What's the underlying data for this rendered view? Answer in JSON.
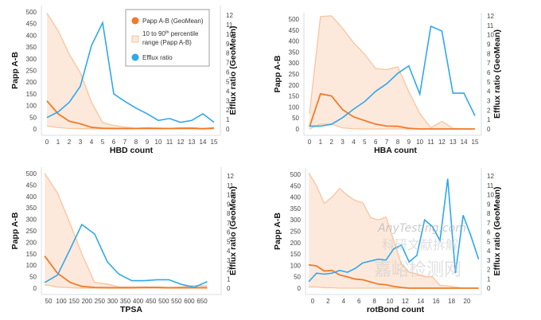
{
  "colors": {
    "geomean": "#f07b2a",
    "range_line": "#f9c49d",
    "range_fill": "#fde9dc",
    "efflux": "#2fa8ee",
    "axis": "#d8dde6"
  },
  "legend": {
    "geomean": "Papp A-B (GeoMean)",
    "range_line1_pre": "10 to 90",
    "range_sup": "th",
    "range_line1_post": " percentile",
    "range_line2": "range (Papp A-B)",
    "efflux": "Efflux ratio"
  },
  "watermark": {
    "line1": "嘉峪检测网",
    "line2": "科研文献拆解",
    "line3": "AnyTesting.com"
  },
  "chart_data": [
    {
      "type": "line",
      "xlabel": "HBD count",
      "ylabel": "Papp A-B",
      "y2label": "Efflux ratio (GeoMean)",
      "xticks": [
        0,
        1,
        2,
        3,
        4,
        5,
        6,
        7,
        8,
        9,
        10,
        11,
        12,
        13,
        14,
        15
      ],
      "yticks": [
        0,
        50,
        100,
        150,
        200,
        250,
        300,
        350,
        400,
        450,
        500
      ],
      "y2ticks": [
        0,
        1,
        2,
        3,
        4,
        5,
        6,
        7,
        8,
        9,
        10,
        11,
        12
      ],
      "ylim": [
        0,
        500
      ],
      "y2lim": [
        0,
        12
      ],
      "x": [
        0,
        1,
        2,
        3,
        4,
        5,
        6,
        7,
        8,
        9,
        10,
        11,
        12,
        13,
        14,
        15
      ],
      "series": [
        {
          "name": "Papp A-B (GeoMean)",
          "values": [
            120,
            65,
            33,
            22,
            7,
            3,
            2,
            2,
            2,
            3,
            2,
            2,
            3,
            3,
            1,
            4
          ]
        },
        {
          "name": "10 to 90th percentile range (Papp A-B)",
          "low": [
            13,
            6,
            2,
            1,
            1,
            0,
            0,
            0,
            0,
            0,
            0,
            0,
            0,
            0,
            0,
            0
          ],
          "high": [
            495,
            420,
            320,
            240,
            115,
            27,
            15,
            8,
            3,
            5,
            4,
            2,
            5,
            6,
            2,
            3
          ]
        },
        {
          "name": "Efflux ratio",
          "axis": "right",
          "values": [
            1.2,
            1.8,
            2.8,
            4.5,
            8.8,
            11.2,
            3.7,
            2.9,
            2.2,
            1.6,
            0.9,
            1.1,
            0.7,
            0.9,
            1.6,
            0.7
          ]
        }
      ],
      "legend": "top-right"
    },
    {
      "type": "line",
      "xlabel": "HBA count",
      "ylabel": "Papp A-B",
      "y2label": "Efflux ratio (GeoMean)",
      "xticks": [
        0,
        1,
        2,
        3,
        4,
        5,
        6,
        7,
        8,
        9,
        10,
        11,
        12,
        13,
        14,
        15
      ],
      "yticks": [
        0,
        50,
        100,
        150,
        200,
        250,
        300,
        350,
        400,
        450,
        500
      ],
      "y2ticks": [
        0,
        1,
        2,
        3,
        4,
        5,
        6,
        7,
        8,
        9,
        10,
        11,
        12
      ],
      "ylim": [
        0,
        500
      ],
      "y2lim": [
        0,
        12
      ],
      "x": [
        0,
        1,
        2,
        3,
        4,
        5,
        6,
        7,
        8,
        9,
        10,
        11,
        12,
        13,
        14,
        15
      ],
      "series": [
        {
          "name": "Papp A-B (GeoMean)",
          "values": [
            10,
            160,
            150,
            88,
            55,
            38,
            22,
            13,
            12,
            3,
            0,
            0,
            0,
            0,
            0,
            0
          ]
        },
        {
          "name": "10 to 90th percentile range (Papp A-B)",
          "low": [
            0,
            22,
            22,
            5,
            1,
            0,
            0,
            0,
            0,
            0,
            0,
            0,
            0,
            0,
            0,
            0
          ],
          "high": [
            70,
            512,
            515,
            458,
            392,
            340,
            275,
            270,
            283,
            170,
            70,
            5,
            35,
            3,
            0,
            0
          ]
        },
        {
          "name": "Efflux ratio",
          "axis": "right",
          "values": [
            0.3,
            0.3,
            0.5,
            1.2,
            2.1,
            2.9,
            4.0,
            4.8,
            5.9,
            6.7,
            3.7,
            10.9,
            10.4,
            3.8,
            3.8,
            1.4
          ]
        }
      ]
    },
    {
      "type": "line",
      "xlabel": "TPSA",
      "ylabel": "Papp A-B",
      "y2label": "Efflux ratio (GeoMean)",
      "xticks": [
        50,
        100,
        150,
        200,
        250,
        300,
        350,
        400,
        450,
        500,
        550,
        600,
        650
      ],
      "yticks": [
        0,
        50,
        100,
        150,
        200,
        250,
        300,
        350,
        400,
        450,
        500
      ],
      "y2ticks": [
        0,
        1,
        2,
        3,
        4,
        5,
        6,
        7,
        8,
        9,
        10,
        11,
        12
      ],
      "ylim": [
        0,
        500
      ],
      "y2lim": [
        0,
        12
      ],
      "x": [
        35,
        85,
        135,
        180,
        230,
        280,
        325,
        375,
        425,
        475,
        520,
        570,
        620,
        670
      ],
      "series": [
        {
          "name": "Papp A-B (GeoMean)",
          "values": [
            140,
            65,
            25,
            8,
            3,
            2,
            2,
            2,
            3,
            3,
            2,
            2,
            2,
            2
          ]
        },
        {
          "name": "10 to 90th percentile range (Papp A-B)",
          "low": [
            15,
            5,
            2,
            0,
            0,
            0,
            0,
            0,
            0,
            0,
            0,
            0,
            0,
            0
          ],
          "high": [
            500,
            415,
            280,
            150,
            25,
            18,
            5,
            5,
            5,
            5,
            3,
            5,
            12,
            10
          ]
        },
        {
          "name": "Efflux ratio",
          "axis": "right",
          "values": [
            0.6,
            1.4,
            4.2,
            6.8,
            5.8,
            2.8,
            1.5,
            0.8,
            0.8,
            0.9,
            0.9,
            0.4,
            0.1,
            0.7
          ]
        }
      ]
    },
    {
      "type": "line",
      "xlabel": "rotBond count",
      "ylabel": "Papp A-B",
      "y2label": "Efflux ratio (GeoMean)",
      "xticks": [
        0,
        2,
        4,
        6,
        8,
        10,
        12,
        14,
        16,
        18,
        20
      ],
      "yticks": [
        0,
        50,
        100,
        150,
        200,
        250,
        300,
        350,
        400,
        450,
        500
      ],
      "y2ticks": [
        0,
        1,
        2,
        3,
        4,
        5,
        6,
        7,
        8,
        9,
        10,
        11,
        12
      ],
      "ylim": [
        0,
        500
      ],
      "y2lim": [
        0,
        12
      ],
      "x": [
        -0.5,
        0.5,
        1.5,
        2.5,
        3.5,
        4.5,
        5.5,
        6.5,
        7.5,
        8.5,
        9.5,
        10.5,
        11.5,
        12.5,
        13.5,
        14.5,
        15.5,
        16.5,
        17.5,
        18.5,
        19.5,
        20.5,
        21.5
      ],
      "series": [
        {
          "name": "Papp A-B (GeoMean)",
          "values": [
            102,
            98,
            75,
            78,
            58,
            50,
            40,
            37,
            27,
            18,
            15,
            8,
            3,
            0,
            0,
            0,
            0,
            0,
            0,
            0,
            0,
            0,
            0
          ]
        },
        {
          "name": "10 to 90th percentile range (Papp A-B)",
          "low": [
            5,
            5,
            2,
            2,
            0,
            0,
            0,
            0,
            0,
            0,
            0,
            0,
            0,
            0,
            0,
            0,
            0,
            0,
            0,
            0,
            0,
            0,
            0
          ],
          "high": [
            505,
            450,
            372,
            400,
            438,
            408,
            385,
            375,
            310,
            300,
            312,
            210,
            105,
            70,
            63,
            50,
            50,
            12,
            10,
            5,
            0,
            0,
            0
          ]
        },
        {
          "name": "Efflux ratio",
          "axis": "right",
          "values": [
            0.7,
            1.6,
            1.5,
            1.6,
            1.9,
            1.7,
            2.1,
            2.7,
            2.9,
            3.1,
            3.0,
            4.2,
            4.6,
            2.8,
            3.5,
            7.3,
            6.6,
            5.1,
            11.7,
            1.6,
            7.8,
            5.6,
            3.1
          ]
        }
      ]
    }
  ]
}
